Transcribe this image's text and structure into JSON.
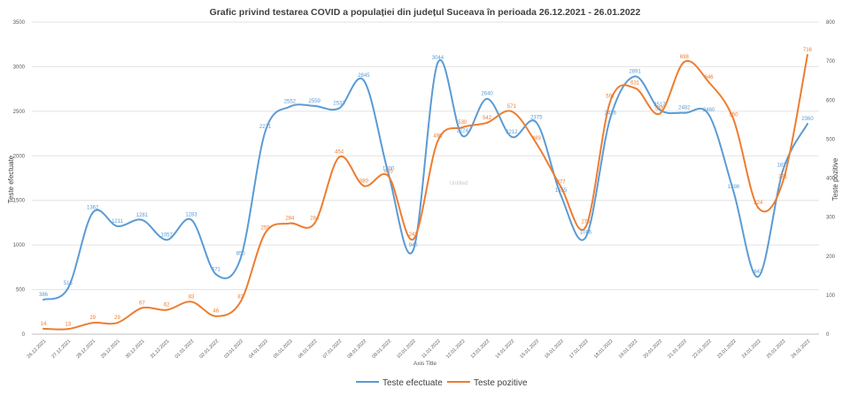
{
  "chart_data": {
    "type": "line",
    "title": "Grafic privind testarea COVID a populației din județul Suceava în perioada 26.12.2021  - 26.01.2022",
    "xlabel": "Axis Title",
    "ylabel": "Teste efectuate",
    "y2label": "Teste pozitive",
    "watermark": "Untitled",
    "ylim": [
      0,
      3500
    ],
    "y2lim": [
      0,
      800
    ],
    "y_ticks": [
      0,
      500,
      1000,
      1500,
      2000,
      2500,
      3000,
      3500
    ],
    "y2_ticks": [
      0,
      100,
      200,
      300,
      400,
      500,
      600,
      700,
      800
    ],
    "grid": true,
    "legend_position": "bottom",
    "categories": [
      "26.12.2021",
      "27.12.2021",
      "28.12.2021",
      "29.12.2021",
      "30.12.2021",
      "31.12.2021",
      "01.01.2022",
      "02.01.2022",
      "03.01.2022",
      "04.01.2022",
      "05.01.2022",
      "06.01.2022",
      "07.01.2022",
      "08.01.2022",
      "09.01.2022",
      "10.01.2022",
      "11.01.2022",
      "12.01.2022",
      "13.01.2022",
      "14.01.2022",
      "15.01.2022",
      "16.01.2022",
      "17.01.2022",
      "18.01.2022",
      "19.01.2022",
      "20.01.2022",
      "21.01.2022",
      "22.01.2022",
      "23.01.2022",
      "24.01.2022",
      "25.01.2022",
      "26.01.2022"
    ],
    "series": [
      {
        "name": "Teste efectuate",
        "axis": "left",
        "color": "#5b9bd5",
        "values": [
          386,
          515,
          1362,
          1211,
          1281,
          1057,
          1283,
          671,
          850,
          2271,
          2552,
          2559,
          2533,
          2845,
          1800,
          940,
          3044,
          2224,
          2640,
          2212,
          2375,
          1555,
          1086,
          2426,
          2891,
          2517,
          2482,
          2460,
          1598,
          643,
          1837,
          2360
        ]
      },
      {
        "name": "Teste pozitive",
        "axis": "right",
        "color": "#ed7d31",
        "values": [
          14,
          13,
          29,
          29,
          67,
          62,
          83,
          46,
          83,
          259,
          284,
          284,
          454,
          380,
          405,
          243,
          495,
          530,
          542,
          571,
          489,
          377,
          275,
          597,
          631,
          565,
          698,
          646,
          550,
          324,
          391,
          716
        ]
      }
    ]
  }
}
